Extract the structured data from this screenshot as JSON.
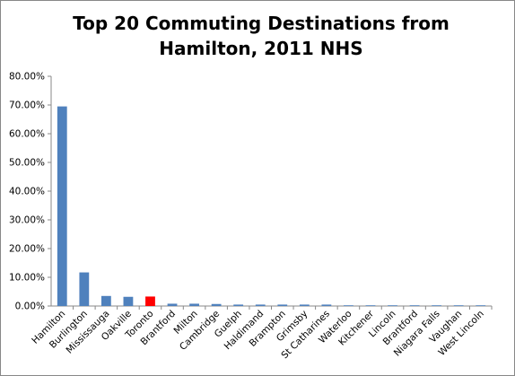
{
  "chart_data": {
    "type": "bar",
    "title_lines": [
      "Top 20 Commuting Destinations from",
      "Hamilton, 2011 NHS"
    ],
    "xlabel": "",
    "ylabel": "",
    "ylim": [
      0,
      0.8
    ],
    "ytick_values": [
      0,
      0.1,
      0.2,
      0.3,
      0.4,
      0.5,
      0.6,
      0.7,
      0.8
    ],
    "ytick_labels": [
      "0.00%",
      "10.00%",
      "20.00%",
      "30.00%",
      "40.00%",
      "50.00%",
      "60.00%",
      "70.00%",
      "80.00%"
    ],
    "grid": false,
    "legend": "none",
    "categories": [
      "Hamilton",
      "Burlington",
      "Mississauga",
      "Oakville",
      "Toronto",
      "Brantford",
      "Milton",
      "Cambridge",
      "Guelph",
      "Haldimand",
      "Brampton",
      "Grimsby",
      "St Catharines",
      "Waterloo",
      "Kitchener",
      "Lincoln",
      "Brantford",
      "Niagara Falls",
      "Vaughan",
      "West Lincoln"
    ],
    "values": [
      0.695,
      0.117,
      0.035,
      0.032,
      0.033,
      0.008,
      0.008,
      0.007,
      0.005,
      0.005,
      0.005,
      0.005,
      0.005,
      0.001,
      0.001,
      0.001,
      0.001,
      0.001,
      0.001,
      0.001
    ],
    "bar_color": "#4F81BD",
    "highlight_index": 4,
    "highlight_color": "#FF0000",
    "axis_color": "#888888"
  }
}
